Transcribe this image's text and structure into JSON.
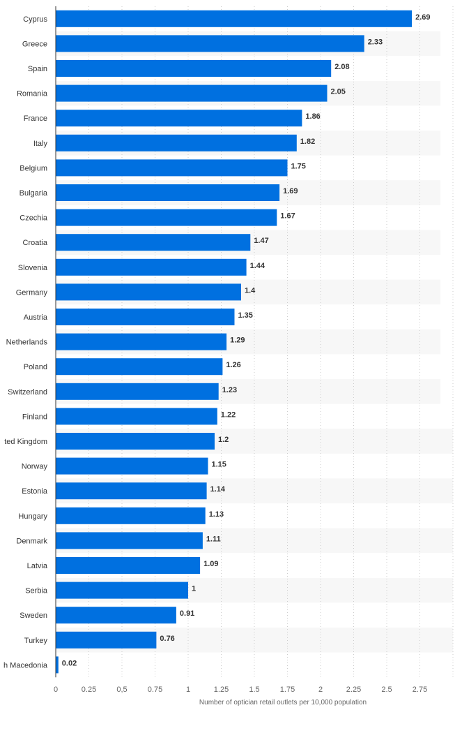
{
  "chart_data": {
    "type": "bar",
    "orientation": "horizontal",
    "categories": [
      "Cyprus",
      "Greece",
      "Spain",
      "Romania",
      "France",
      "Italy",
      "Belgium",
      "Bulgaria",
      "Czechia",
      "Croatia",
      "Slovenia",
      "Germany",
      "Austria",
      "Netherlands",
      "Poland",
      "Switzerland",
      "Finland",
      "ted Kingdom",
      "Norway",
      "Estonia",
      "Hungary",
      "Denmark",
      "Latvia",
      "Serbia",
      "Sweden",
      "Turkey",
      "h Macedonia"
    ],
    "values": [
      2.69,
      2.33,
      2.08,
      2.05,
      1.86,
      1.82,
      1.75,
      1.69,
      1.67,
      1.47,
      1.44,
      1.4,
      1.35,
      1.29,
      1.26,
      1.23,
      1.22,
      1.2,
      1.15,
      1.14,
      1.13,
      1.11,
      1.09,
      1,
      0.91,
      0.76,
      0.02
    ],
    "value_labels": [
      "2.69",
      "2.33",
      "2.08",
      "2.05",
      "1.86",
      "1.82",
      "1.75",
      "1.69",
      "1.67",
      "1.47",
      "1.44",
      "1.4",
      "1.35",
      "1.29",
      "1.26",
      "1.23",
      "1.22",
      "1.2",
      "1.15",
      "1.14",
      "1.13",
      "1.11",
      "1.09",
      "1",
      "0.91",
      "0.76",
      "0.02"
    ],
    "xticks": [
      0,
      0.25,
      0.5,
      0.75,
      1,
      1.25,
      1.5,
      1.75,
      2,
      2.25,
      2.5,
      2.75
    ],
    "xtick_labels": [
      "0",
      "0.25",
      "0,5",
      "0.75",
      "1",
      "1.25",
      "1.5",
      "1.75",
      "2",
      "2.25",
      "2.5",
      "2.75"
    ],
    "xlim": [
      0,
      3.0
    ],
    "title": "",
    "xlabel": "Number of optician retail outlets per 10,000 population",
    "ylabel": "",
    "grid": true,
    "colors": {
      "bar": "#0070e0",
      "grid": "#cccccc",
      "band": "#f7f7f7",
      "axis": "#333333"
    }
  }
}
